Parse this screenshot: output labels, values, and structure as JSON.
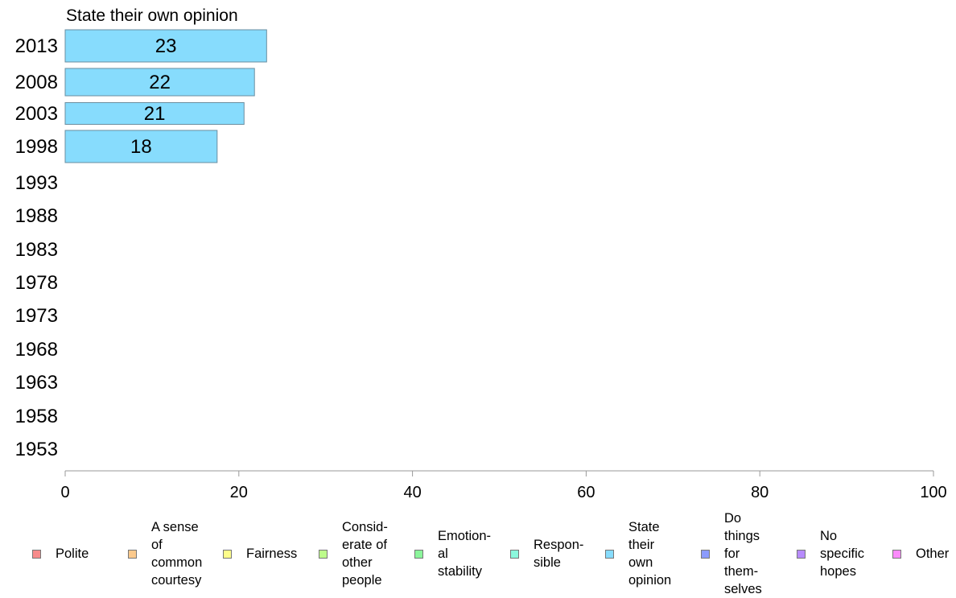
{
  "chart_data": {
    "type": "bar",
    "orientation": "horizontal",
    "title": "State their own opinion",
    "categories": [
      "2013",
      "2008",
      "2003",
      "1998",
      "1993",
      "1988",
      "1983",
      "1978",
      "1973",
      "1968",
      "1963",
      "1958",
      "1953"
    ],
    "series": [
      {
        "name": "State their own opinion",
        "color": "#87dcfd",
        "values": [
          23,
          22,
          21,
          18,
          null,
          null,
          null,
          null,
          null,
          null,
          null,
          null,
          null
        ],
        "bar_values": [
          23.2,
          21.8,
          20.6,
          17.5,
          null,
          null,
          null,
          null,
          null,
          null,
          null,
          null,
          null
        ]
      }
    ],
    "xlim": [
      0,
      100
    ],
    "xticks": [
      "0",
      "20",
      "40",
      "60",
      "80",
      "100"
    ],
    "grid": false,
    "legend_position": "bottom",
    "legend": [
      {
        "label": "Polite",
        "color": "#f78b8b"
      },
      {
        "label": "A sense\nof\ncommon\ncourtesy",
        "color": "#fbc98c"
      },
      {
        "label": "Fairness",
        "color": "#fdfd8b"
      },
      {
        "label": "Consid-\nerate of\nother\npeople",
        "color": "#bdfc8b"
      },
      {
        "label": "Emotion-\nal\nstability",
        "color": "#8bf59b"
      },
      {
        "label": "Respon-\nsible",
        "color": "#8bf9dd"
      },
      {
        "label": "State\ntheir\nown\nopinion",
        "color": "#87dcfd"
      },
      {
        "label": "Do\nthings\nfor\nthem-\nselves",
        "color": "#8b9bfd"
      },
      {
        "label": "No\nspecific\nhopes",
        "color": "#b78bfd"
      },
      {
        "label": "Other",
        "color": "#fb8bfb"
      }
    ]
  }
}
